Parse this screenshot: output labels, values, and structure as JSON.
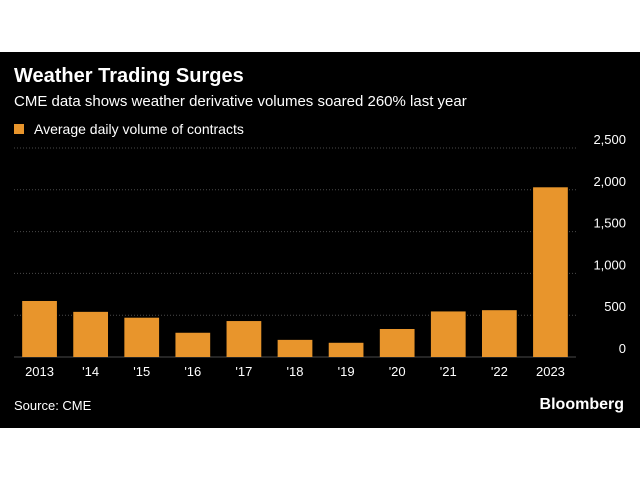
{
  "header": {
    "title": "Weather Trading Surges",
    "subtitle": "CME data shows weather derivative volumes soared 260% last year",
    "legend_label": "Average daily volume of contracts"
  },
  "footer": {
    "source": "Source: CME",
    "brand": "Bloomberg"
  },
  "colors": {
    "bar": "#e8952c",
    "background": "#000000",
    "gridline": "#4a4a4a",
    "text": "#ffffff"
  },
  "chart_data": {
    "type": "bar",
    "categories": [
      "2013",
      "'14",
      "'15",
      "'16",
      "'17",
      "'18",
      "'19",
      "'20",
      "'21",
      "'22",
      "2023"
    ],
    "series": [
      {
        "name": "Average daily volume of contracts",
        "values": [
          670,
          540,
          470,
          290,
          430,
          205,
          170,
          335,
          545,
          560,
          2030
        ]
      }
    ],
    "y_ticks": [
      0,
      500,
      1000,
      1500,
      2000,
      2500
    ],
    "y_tick_labels": [
      "0",
      "500",
      "1,000",
      "1,500",
      "2,000",
      "2,500"
    ],
    "ylim": [
      0,
      2500
    ],
    "y_axis_side": "right",
    "grid": true,
    "legend_placement": "top-left"
  }
}
